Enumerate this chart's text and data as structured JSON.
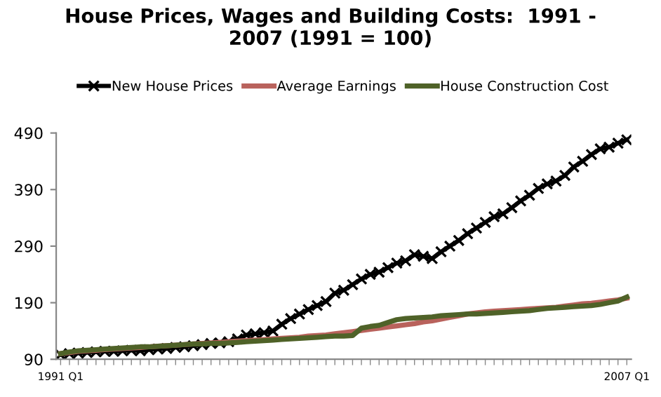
{
  "chart_data": {
    "type": "line",
    "title": "House Prices, Wages and Building Costs:  1991 -\n2007 (1991 = 100)",
    "categories": [
      "1991 Q1",
      null,
      null,
      null,
      null,
      null,
      null,
      null,
      null,
      null,
      null,
      null,
      null,
      null,
      null,
      null,
      null,
      null,
      null,
      null,
      null,
      null,
      null,
      null,
      null,
      null,
      null,
      null,
      null,
      null,
      null,
      null,
      null,
      null,
      null,
      null,
      null,
      null,
      null,
      null,
      null,
      null,
      null,
      null,
      null,
      null,
      null,
      null,
      null,
      null,
      null,
      null,
      null,
      null,
      null,
      null,
      null,
      null,
      null,
      null,
      null,
      null,
      null,
      null,
      "2007 Q1"
    ],
    "series": [
      {
        "name": "New House Prices",
        "color": "#000000",
        "marker": "cross",
        "values": [
          98,
          100,
          101,
          102,
          103,
          104,
          104,
          105,
          106,
          105,
          107,
          108,
          109,
          111,
          112,
          114,
          116,
          118,
          119,
          121,
          126,
          133,
          135,
          137,
          140,
          152,
          162,
          170,
          178,
          185,
          192,
          207,
          212,
          222,
          232,
          240,
          244,
          252,
          260,
          264,
          275,
          272,
          268,
          280,
          290,
          300,
          312,
          322,
          332,
          342,
          347,
          358,
          370,
          380,
          392,
          400,
          405,
          415,
          430,
          440,
          452,
          462,
          465,
          472,
          478
        ]
      },
      {
        "name": "Average Earnings",
        "color": "#b9625c",
        "values": [
          100,
          102,
          104,
          105,
          106,
          107,
          108,
          109,
          110,
          111,
          112,
          113,
          114,
          115,
          116,
          117,
          118,
          119,
          120,
          121,
          122,
          123,
          124,
          125,
          126,
          127,
          128,
          129,
          131,
          132,
          133,
          135,
          137,
          139,
          141,
          143,
          145,
          147,
          149,
          151,
          153,
          156,
          158,
          161,
          164,
          167,
          170,
          172,
          174,
          175,
          176,
          177,
          178,
          179,
          180,
          181,
          182,
          184,
          186,
          188,
          189,
          191,
          193,
          195,
          198
        ]
      },
      {
        "name": "House Construction Cost",
        "color": "#4f6228",
        "values": [
          100,
          103,
          105,
          106,
          107,
          108,
          109,
          110,
          111,
          112,
          112,
          113,
          114,
          115,
          116,
          117,
          117,
          118,
          118,
          119,
          120,
          121,
          122,
          123,
          124,
          125,
          126,
          127,
          128,
          129,
          130,
          131,
          131,
          132,
          145,
          148,
          150,
          155,
          160,
          162,
          163,
          164,
          165,
          167,
          168,
          169,
          170,
          170,
          171,
          172,
          173,
          174,
          175,
          176,
          178,
          180,
          181,
          182,
          183,
          184,
          185,
          187,
          190,
          193,
          200
        ]
      }
    ],
    "ylim": [
      90,
      490
    ],
    "yticks": [
      90,
      190,
      290,
      390,
      490
    ],
    "grid": false,
    "legend": "top"
  }
}
